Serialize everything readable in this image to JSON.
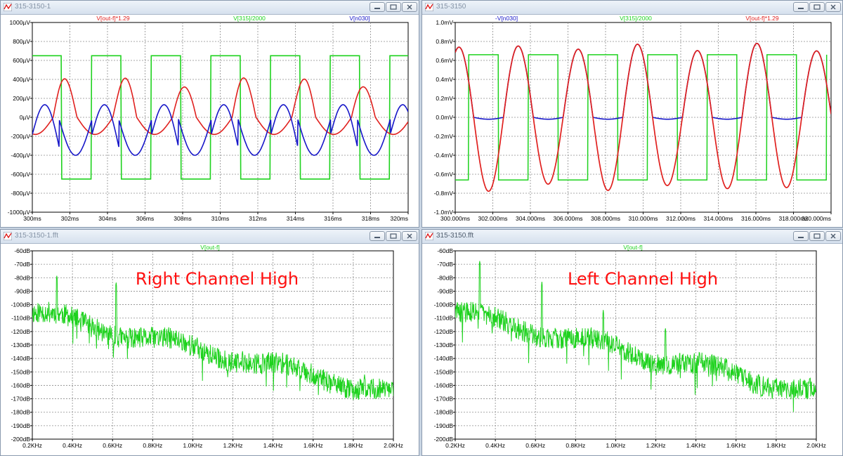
{
  "windows": [
    {
      "id": "w1",
      "title": "315-3150-1",
      "title_dark": false,
      "headline": "",
      "traces": [
        {
          "label": "V[out-f]*1.29",
          "color": "#e0201e"
        },
        {
          "label": "V[315]/2000",
          "color": "#1ed21e"
        },
        {
          "label": "V[n030]",
          "color": "#1717c8"
        }
      ],
      "y_ticks": [
        "1000µV",
        "800µV",
        "600µV",
        "400µV",
        "200µV",
        "0µV",
        "-200µV",
        "-400µV",
        "-600µV",
        "-800µV",
        "-1000µV"
      ],
      "x_ticks": [
        "300ms",
        "302ms",
        "304ms",
        "306ms",
        "308ms",
        "310ms",
        "312ms",
        "314ms",
        "316ms",
        "318ms",
        "320ms"
      ]
    },
    {
      "id": "w2",
      "title": "315-3150",
      "title_dark": false,
      "headline": "",
      "traces": [
        {
          "label": "-V[n030]",
          "color": "#1717c8"
        },
        {
          "label": "V[315]/2000",
          "color": "#1ed21e"
        },
        {
          "label": "V[out-f]*1.29",
          "color": "#e0201e"
        }
      ],
      "y_ticks": [
        "1.0mV",
        "0.8mV",
        "0.6mV",
        "0.4mV",
        "0.2mV",
        "0.0mV",
        "-0.2mV",
        "-0.4mV",
        "-0.6mV",
        "-0.8mV",
        "-1.0mV"
      ],
      "x_ticks": [
        "300.000ms",
        "302.000ms",
        "304.000ms",
        "306.000ms",
        "308.000ms",
        "310.000ms",
        "312.000ms",
        "314.000ms",
        "316.000ms",
        "318.000ms",
        "320.000ms"
      ]
    },
    {
      "id": "w3",
      "title": "315-3150-1.fft",
      "title_dark": false,
      "headline": "Right Channel High",
      "traces": [
        {
          "label": "V[out-f]",
          "color": "#1ed21e"
        }
      ],
      "y_ticks": [
        "-60dB",
        "-70dB",
        "-80dB",
        "-90dB",
        "-100dB",
        "-110dB",
        "-120dB",
        "-130dB",
        "-140dB",
        "-150dB",
        "-160dB",
        "-170dB",
        "-180dB",
        "-190dB",
        "-200dB"
      ],
      "x_ticks": [
        "0.2KHz",
        "0.4KHz",
        "0.6KHz",
        "0.8KHz",
        "1.0KHz",
        "1.2KHz",
        "1.4KHz",
        "1.6KHz",
        "1.8KHz",
        "2.0KHz"
      ]
    },
    {
      "id": "w4",
      "title": "315-3150.fft",
      "title_dark": true,
      "headline": "Left Channel High",
      "traces": [
        {
          "label": "V[out-f]",
          "color": "#1ed21e"
        }
      ],
      "y_ticks": [
        "-60dB",
        "-70dB",
        "-80dB",
        "-90dB",
        "-100dB",
        "-110dB",
        "-120dB",
        "-130dB",
        "-140dB",
        "-150dB",
        "-160dB",
        "-170dB",
        "-180dB",
        "-190dB",
        "-200dB"
      ],
      "x_ticks": [
        "0.2KHz",
        "0.4KHz",
        "0.6KHz",
        "0.8KHz",
        "1.0KHz",
        "1.2KHz",
        "1.4KHz",
        "1.6KHz",
        "1.8KHz",
        "2.0KHz"
      ]
    }
  ],
  "headline_color": "#ff1010"
}
